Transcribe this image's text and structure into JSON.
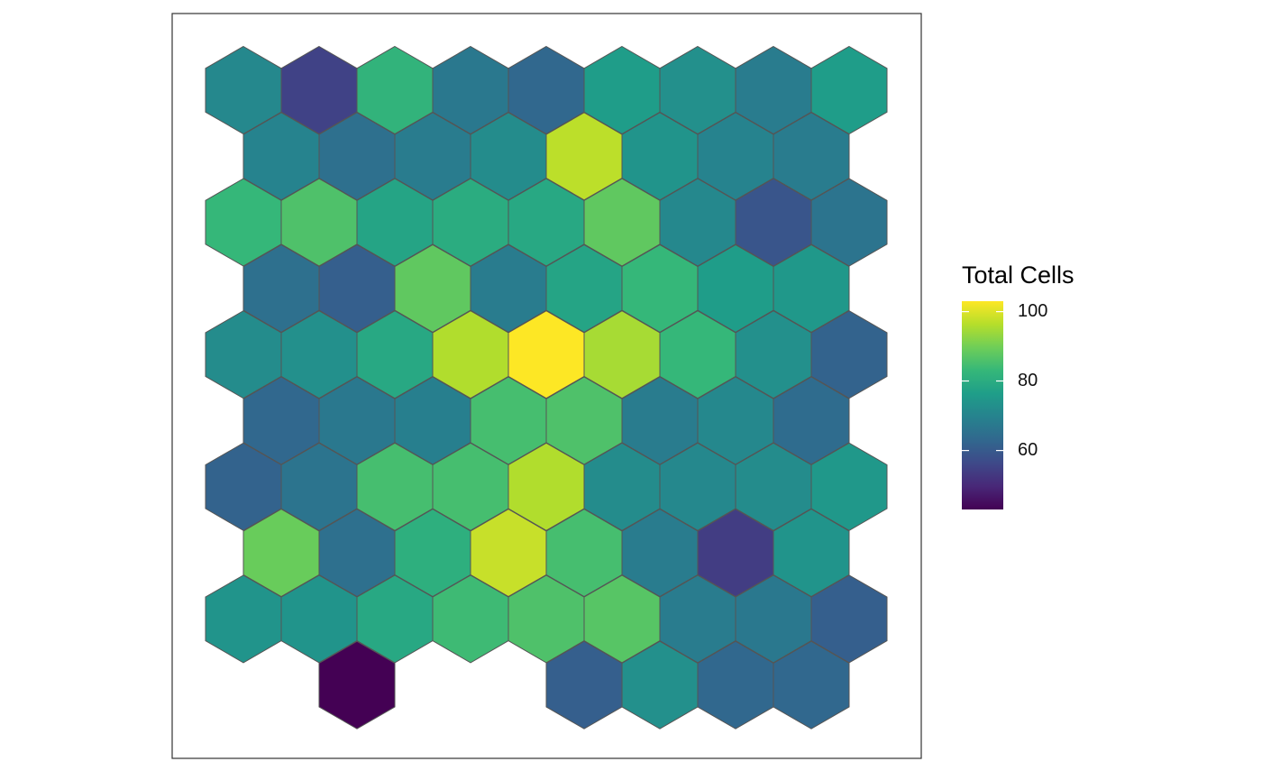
{
  "chart_data": {
    "type": "heatmap",
    "subtype": "hexbin",
    "legend": {
      "title": "Total Cells",
      "placement": "right",
      "min": 43,
      "max": 103,
      "ticks": [
        {
          "value": 100,
          "label": "100"
        },
        {
          "value": 80,
          "label": "80"
        },
        {
          "value": 60,
          "label": "60"
        }
      ]
    },
    "grid": false,
    "colormap": "viridis",
    "colors": {
      "hex_border": "#555555",
      "panel_border": "#333333",
      "viridis": [
        "#440154",
        "#482878",
        "#3e4989",
        "#31688e",
        "#26828e",
        "#1f9e89",
        "#35b779",
        "#6ece58",
        "#b5de2b",
        "#fde725"
      ]
    },
    "rows": [
      {
        "row": 0,
        "offset": false,
        "cells": [
          {
            "col": 0,
            "value": 71
          },
          {
            "col": 1,
            "value": 55
          },
          {
            "col": 2,
            "value": 82
          },
          {
            "col": 3,
            "value": 67
          },
          {
            "col": 4,
            "value": 63
          },
          {
            "col": 5,
            "value": 76
          },
          {
            "col": 6,
            "value": 73
          },
          {
            "col": 7,
            "value": 68
          },
          {
            "col": 8,
            "value": 76
          }
        ]
      },
      {
        "row": 1,
        "offset": true,
        "cells": [
          {
            "col": 0,
            "value": 70
          },
          {
            "col": 1,
            "value": 65
          },
          {
            "col": 2,
            "value": 68
          },
          {
            "col": 3,
            "value": 72
          },
          {
            "col": 4,
            "value": 97
          },
          {
            "col": 5,
            "value": 74
          },
          {
            "col": 6,
            "value": 70
          },
          {
            "col": 7,
            "value": 68
          }
        ]
      },
      {
        "row": 2,
        "offset": false,
        "cells": [
          {
            "col": 0,
            "value": 83
          },
          {
            "col": 1,
            "value": 86
          },
          {
            "col": 2,
            "value": 78
          },
          {
            "col": 3,
            "value": 80
          },
          {
            "col": 4,
            "value": 79
          },
          {
            "col": 5,
            "value": 88
          },
          {
            "col": 6,
            "value": 71
          },
          {
            "col": 7,
            "value": 59
          },
          {
            "col": 8,
            "value": 66
          }
        ]
      },
      {
        "row": 3,
        "offset": true,
        "cells": [
          {
            "col": 0,
            "value": 65
          },
          {
            "col": 1,
            "value": 61
          },
          {
            "col": 2,
            "value": 88
          },
          {
            "col": 3,
            "value": 68
          },
          {
            "col": 4,
            "value": 78
          },
          {
            "col": 5,
            "value": 83
          },
          {
            "col": 6,
            "value": 76
          },
          {
            "col": 7,
            "value": 75
          }
        ]
      },
      {
        "row": 4,
        "offset": false,
        "cells": [
          {
            "col": 0,
            "value": 72
          },
          {
            "col": 1,
            "value": 73
          },
          {
            "col": 2,
            "value": 79
          },
          {
            "col": 3,
            "value": 96
          },
          {
            "col": 4,
            "value": 103
          },
          {
            "col": 5,
            "value": 95
          },
          {
            "col": 6,
            "value": 83
          },
          {
            "col": 7,
            "value": 73
          },
          {
            "col": 8,
            "value": 62
          }
        ]
      },
      {
        "row": 5,
        "offset": true,
        "cells": [
          {
            "col": 0,
            "value": 63
          },
          {
            "col": 1,
            "value": 67
          },
          {
            "col": 2,
            "value": 69
          },
          {
            "col": 3,
            "value": 85
          },
          {
            "col": 4,
            "value": 86
          },
          {
            "col": 5,
            "value": 68
          },
          {
            "col": 6,
            "value": 71
          },
          {
            "col": 7,
            "value": 64
          }
        ]
      },
      {
        "row": 6,
        "offset": false,
        "cells": [
          {
            "col": 0,
            "value": 62
          },
          {
            "col": 1,
            "value": 66
          },
          {
            "col": 2,
            "value": 85
          },
          {
            "col": 3,
            "value": 85
          },
          {
            "col": 4,
            "value": 96
          },
          {
            "col": 5,
            "value": 72
          },
          {
            "col": 6,
            "value": 71
          },
          {
            "col": 7,
            "value": 72
          },
          {
            "col": 8,
            "value": 75
          }
        ]
      },
      {
        "row": 7,
        "offset": true,
        "cells": [
          {
            "col": 0,
            "value": 89
          },
          {
            "col": 1,
            "value": 65
          },
          {
            "col": 2,
            "value": 81
          },
          {
            "col": 3,
            "value": 98
          },
          {
            "col": 4,
            "value": 85
          },
          {
            "col": 5,
            "value": 68
          },
          {
            "col": 6,
            "value": 54
          },
          {
            "col": 7,
            "value": 74
          }
        ]
      },
      {
        "row": 8,
        "offset": false,
        "cells": [
          {
            "col": 0,
            "value": 74
          },
          {
            "col": 1,
            "value": 74
          },
          {
            "col": 2,
            "value": 79
          },
          {
            "col": 3,
            "value": 84
          },
          {
            "col": 4,
            "value": 86
          },
          {
            "col": 5,
            "value": 87
          },
          {
            "col": 6,
            "value": 68
          },
          {
            "col": 7,
            "value": 67
          },
          {
            "col": 8,
            "value": 61
          }
        ]
      },
      {
        "row": 9,
        "offset": true,
        "cells": [
          {
            "col": 1,
            "value": 43
          },
          {
            "col": 4,
            "value": 61
          },
          {
            "col": 5,
            "value": 73
          },
          {
            "col": 6,
            "value": 63
          },
          {
            "col": 7,
            "value": 63
          }
        ]
      }
    ]
  }
}
